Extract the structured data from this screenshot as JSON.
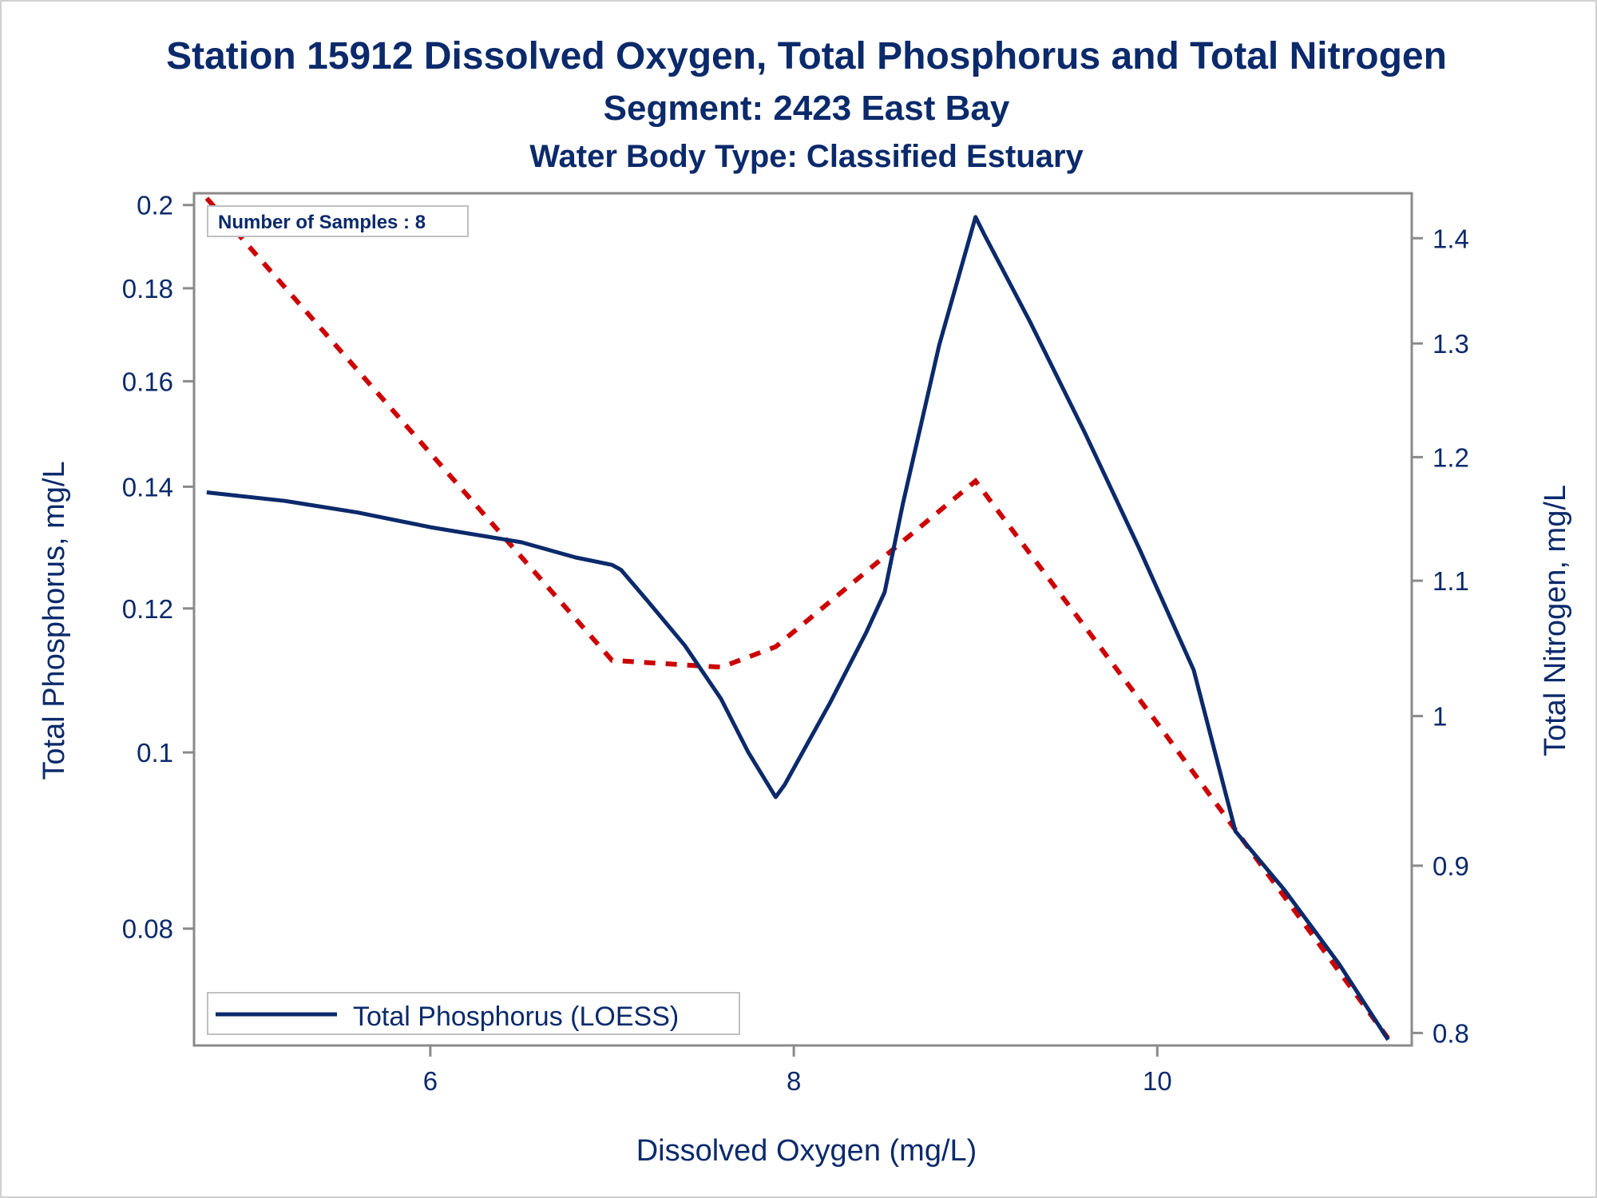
{
  "title": "Station 15912  Dissolved Oxygen, Total Phosphorus and Total Nitrogen",
  "subtitle": "Segment: 2423  East Bay",
  "subtitle2": "Water Body Type: Classified Estuary",
  "inset": "Number of Samples : 8",
  "legend": {
    "entries": [
      "Total Phosphorus (LOESS)"
    ],
    "placement": "bottom-left"
  },
  "colors": {
    "phosphorus": "#0b2a6b",
    "nitrogen": "#cc0000",
    "text": "#0b2a6b",
    "frame": "#8a8a8a"
  },
  "chart_data": {
    "type": "line",
    "xlabel": "Dissolved Oxygen (mg/L)",
    "ylabel": "Total Phosphorus, mg/L",
    "y2label": "Total Nitrogen, mg/L",
    "xlim": [
      4.7,
      11.4
    ],
    "ylim": [
      0.069,
      0.203
    ],
    "y2lim": [
      0.793,
      1.445
    ],
    "yscale": "log",
    "y2scale": "log",
    "xticks": [
      6,
      8,
      10
    ],
    "xtick_labels": [
      "6",
      "8",
      "10"
    ],
    "yticks": [
      0.08,
      0.1,
      0.12,
      0.14,
      0.16,
      0.18,
      0.2
    ],
    "ytick_labels": [
      "0.08",
      "0.1",
      "0.12",
      "0.14",
      "0.16",
      "0.18",
      "0.2"
    ],
    "y2ticks": [
      0.8,
      0.9,
      1.0,
      1.1,
      1.2,
      1.3,
      1.4
    ],
    "y2tick_labels": [
      "0.8",
      "0.9",
      "1",
      "1.1",
      "1.2",
      "1.3",
      "1.4"
    ],
    "grid": false,
    "series": [
      {
        "name": "Total Phosphorus (LOESS)",
        "axis": "left",
        "style": "solid",
        "x": [
          4.77,
          5.2,
          5.6,
          6.0,
          6.5,
          6.8,
          7.0,
          7.05,
          7.2,
          7.4,
          7.6,
          7.75,
          7.9,
          7.95,
          8.2,
          8.4,
          8.5,
          8.6,
          8.8,
          9.0,
          9.05,
          9.3,
          9.6,
          9.9,
          10.2,
          10.43,
          10.47,
          10.7,
          11.0,
          11.27
        ],
        "y": [
          0.139,
          0.1375,
          0.1355,
          0.133,
          0.1305,
          0.128,
          0.1268,
          0.126,
          0.121,
          0.1145,
          0.107,
          0.1,
          0.0945,
          0.096,
          0.1065,
          0.1165,
          0.1225,
          0.137,
          0.1675,
          0.197,
          0.1925,
          0.1725,
          0.15,
          0.1295,
          0.111,
          0.0905,
          0.0895,
          0.084,
          0.0765,
          0.0695
        ]
      },
      {
        "name": "",
        "axis": "right",
        "style": "dashed",
        "x": [
          4.77,
          7.0,
          7.6,
          7.9,
          9.0,
          10.0,
          11.27
        ],
        "y": [
          1.44,
          1.04,
          1.035,
          1.05,
          1.18,
          0.995,
          0.797
        ]
      }
    ]
  }
}
